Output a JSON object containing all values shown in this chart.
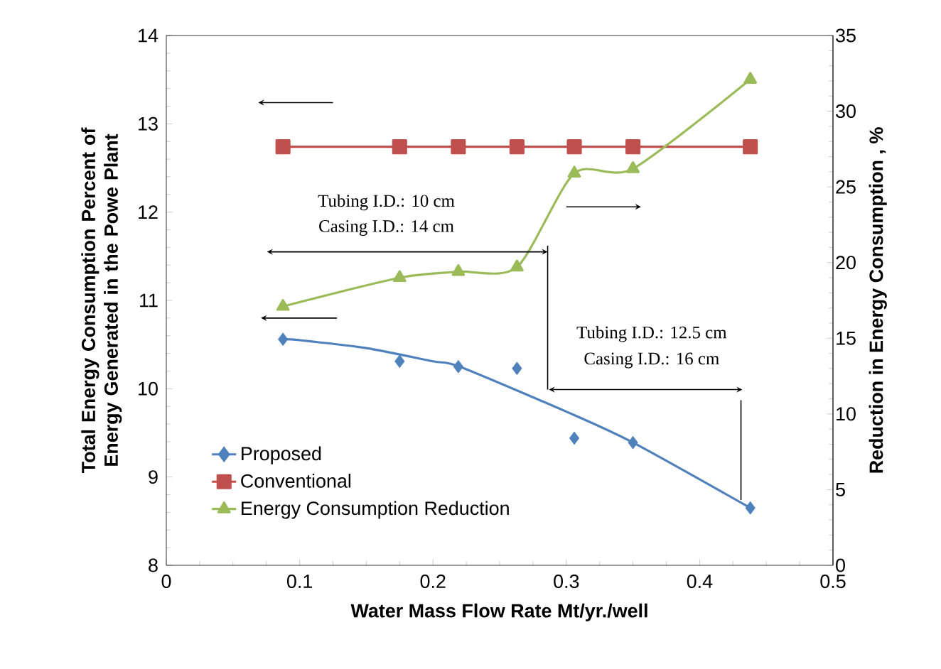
{
  "chart_data": {
    "type": "line",
    "xlabel": "Water Mass Flow Rate Mt/yr./well",
    "ylabel": "Total Energy Consumption Percent of Energy Generated  in the Powe Plant",
    "y2label": "Reduction in Energy Consumption , %",
    "xlim": [
      0,
      0.5
    ],
    "xticks": [
      0,
      0.1,
      0.2,
      0.3,
      0.4,
      0.5
    ],
    "ylim": [
      8,
      14
    ],
    "yticks": [
      8,
      9,
      10,
      11,
      12,
      13,
      14
    ],
    "y2lim": [
      0,
      35
    ],
    "y2ticks": [
      0,
      5,
      10,
      15,
      20,
      25,
      30,
      35
    ],
    "legend": "bottom left",
    "series": [
      {
        "name": "Proposed",
        "type": "scatter",
        "marker": "diamond",
        "color": "#4f81bd",
        "x": [
          0.0875,
          0.175,
          0.219,
          0.263,
          0.306,
          0.35,
          0.438
        ],
        "values": [
          10.56,
          10.31,
          10.25,
          10.23,
          9.44,
          9.39,
          8.65
        ]
      },
      {
        "marker": "none",
        "color": "#4f81bd",
        "x": [
          0.0875,
          0.1,
          0.15,
          0.2,
          0.22,
          0.3,
          0.35,
          0.438
        ],
        "values": [
          10.56,
          10.55,
          10.46,
          10.31,
          10.25,
          9.74,
          9.39,
          8.65
        ]
      },
      {
        "name": "Conventional",
        "marker": "square",
        "color": "#c0504d",
        "x": [
          0.0875,
          0.175,
          0.219,
          0.263,
          0.306,
          0.35,
          0.438
        ],
        "values": [
          12.74,
          12.74,
          12.74,
          12.74,
          12.74,
          12.74,
          12.74
        ]
      },
      {
        "name": "Energy Consumption Reduction",
        "axis": "y2",
        "marker": "triangle",
        "color": "#9bbb59",
        "x": [
          0.0875,
          0.175,
          0.219,
          0.263,
          0.306,
          0.35,
          0.438
        ],
        "values": [
          17.1,
          19.0,
          19.4,
          19.7,
          25.9,
          26.2,
          32.1
        ]
      }
    ],
    "annotations": [
      "Tubing I.D.: 10 cm",
      "Casing I.D.: 14 cm",
      "Tubing I.D.: 12.5 cm",
      "Casing I.D.:  16 cm"
    ]
  }
}
